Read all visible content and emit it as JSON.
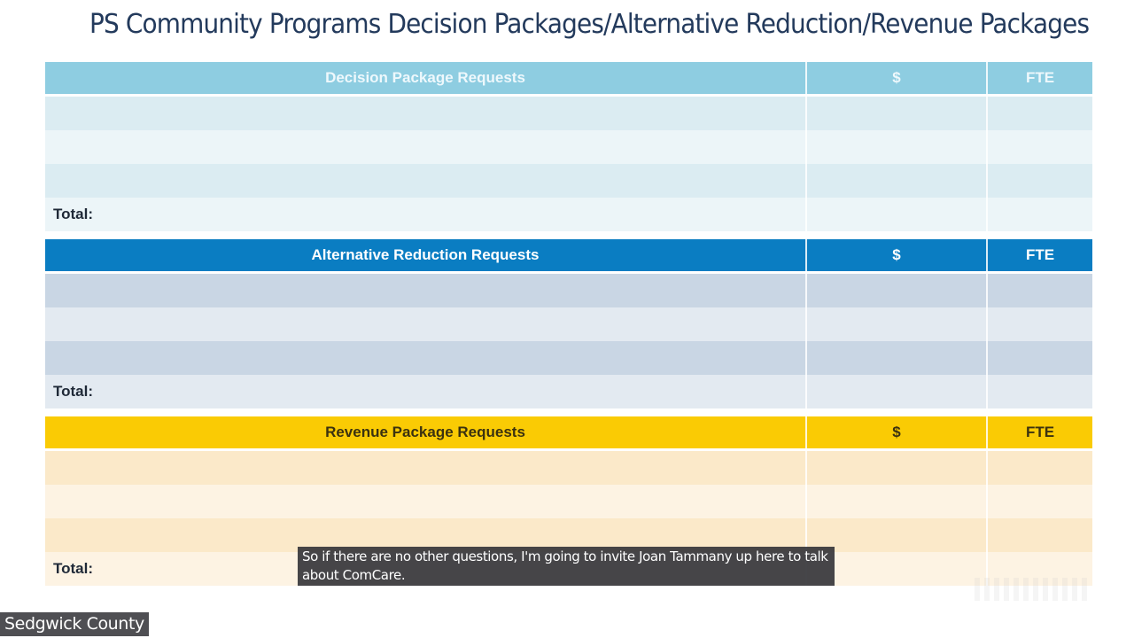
{
  "slide": {
    "title": "PS Community Programs Decision Packages/Alternative Reduction/Revenue Packages"
  },
  "tables": {
    "decision": {
      "header": {
        "label": "Decision Package Requests",
        "amount": "$",
        "fte": "FTE"
      },
      "rows": [
        {
          "label": "",
          "amount": "",
          "fte": ""
        },
        {
          "label": "",
          "amount": "",
          "fte": ""
        },
        {
          "label": "",
          "amount": "",
          "fte": ""
        }
      ],
      "total": {
        "label": "Total:",
        "amount": "",
        "fte": ""
      },
      "header_color": "#8ecde1"
    },
    "reduction": {
      "header": {
        "label": "Alternative Reduction Requests",
        "amount": "$",
        "fte": "FTE"
      },
      "rows": [
        {
          "label": "",
          "amount": "",
          "fte": ""
        },
        {
          "label": "",
          "amount": "",
          "fte": ""
        },
        {
          "label": "",
          "amount": "",
          "fte": ""
        }
      ],
      "total": {
        "label": "Total:",
        "amount": "",
        "fte": ""
      },
      "header_color": "#0a7dc2"
    },
    "revenue": {
      "header": {
        "label": "Revenue Package Requests",
        "amount": "$",
        "fte": "FTE"
      },
      "rows": [
        {
          "label": "",
          "amount": "",
          "fte": ""
        },
        {
          "label": "",
          "amount": "",
          "fte": ""
        },
        {
          "label": "",
          "amount": "",
          "fte": ""
        }
      ],
      "total": {
        "label": "Total:",
        "amount": "",
        "fte": ""
      },
      "header_color": "#facb04"
    }
  },
  "caption": {
    "text": "So if there are no other questions, I'm going to invite Joan Tammany up here to talk about ComCare."
  },
  "channel": {
    "name": "Sedgwick County"
  }
}
